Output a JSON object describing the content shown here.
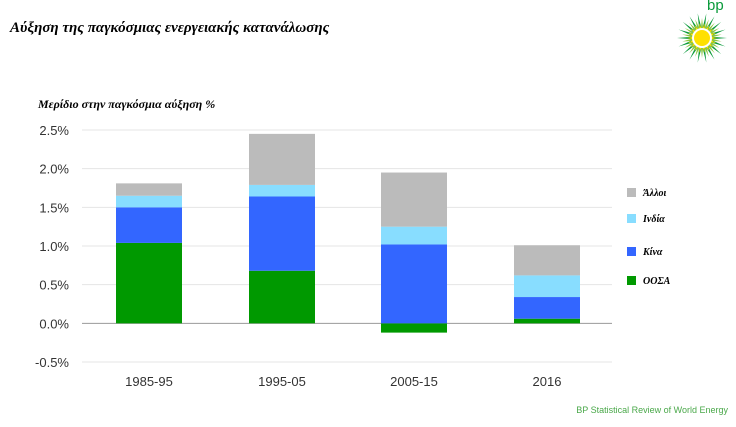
{
  "title": "Αύξηση της παγκόσμιας ενεργειακής κατανάλωσης",
  "logo_text": "bp",
  "source": "BP Statistical Review of World Energy",
  "chart_data": {
    "type": "bar",
    "stacked": true,
    "title": "Αύξηση της παγκόσμιας ενεργειακής κατανάλωσης",
    "ylabel": "Μερίδιο στην παγκόσμια αύξηση %",
    "xlabel": "",
    "categories": [
      "1985-95",
      "1995-05",
      "2005-15",
      "2016"
    ],
    "ylim": [
      -0.5,
      2.5
    ],
    "yticks": [
      "2.5%",
      "2.0%",
      "1.5%",
      "1.0%",
      "0.5%",
      "0.0%",
      "-0.5%"
    ],
    "ytick_values": [
      2.5,
      2.0,
      1.5,
      1.0,
      0.5,
      0.0,
      -0.5
    ],
    "grid": true,
    "legend_position": "right",
    "series": [
      {
        "name": "ΟΟΣΑ",
        "color": "#009900",
        "values": [
          1.04,
          0.68,
          -0.12,
          0.06
        ]
      },
      {
        "name": "Κίνα",
        "color": "#3366ff",
        "values": [
          0.46,
          0.96,
          1.02,
          0.28
        ]
      },
      {
        "name": "Ινδία",
        "color": "#88ddff",
        "values": [
          0.15,
          0.15,
          0.23,
          0.28
        ]
      },
      {
        "name": "Άλλοι",
        "color": "#bbbbbb",
        "values": [
          0.16,
          0.66,
          0.7,
          0.39
        ]
      }
    ],
    "legend_order": [
      "Άλλοι",
      "Ινδία",
      "Κίνα",
      "ΟΟΣΑ"
    ]
  }
}
